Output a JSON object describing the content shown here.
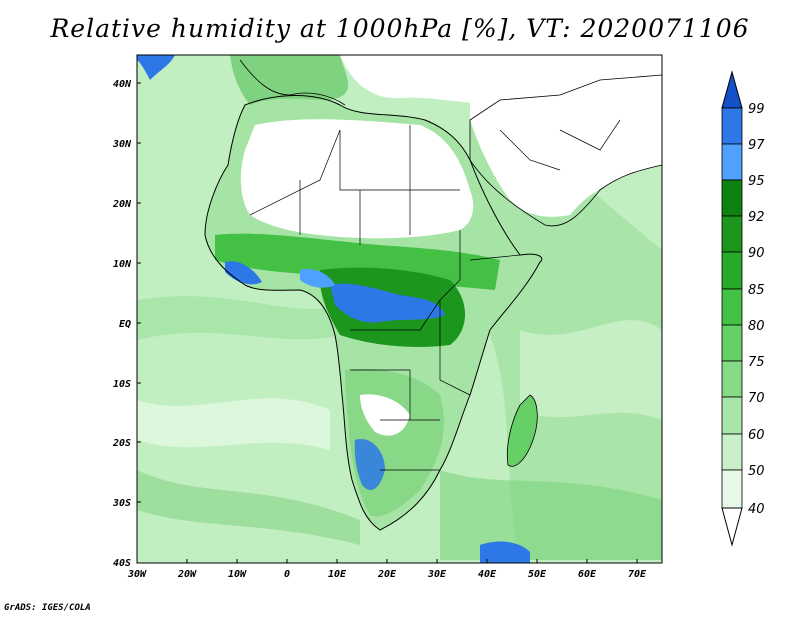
{
  "title": "Relative humidity at 1000hPa [%], VT: 2020071106",
  "credit": "GrADS: IGES/COLA",
  "map": {
    "lon_range": [
      -30,
      75
    ],
    "lat_range": [
      -40,
      45
    ],
    "lon_ticks": [
      "30W",
      "20W",
      "10W",
      "0",
      "10E",
      "20E",
      "30E",
      "40E",
      "50E",
      "60E",
      "70E"
    ],
    "lat_ticks": [
      "40N",
      "30N",
      "20N",
      "10N",
      "EQ",
      "10S",
      "20S",
      "30S",
      "40S"
    ]
  },
  "colorbar": {
    "levels": [
      "40",
      "50",
      "60",
      "70",
      "75",
      "80",
      "85",
      "90",
      "92",
      "95",
      "97",
      "99"
    ],
    "colors": {
      "lt40": "#ffffff",
      "40_50": "#e6f8e6",
      "50_60": "#c9f0c9",
      "60_70": "#a8e6a8",
      "70_75": "#86dc86",
      "75_80": "#66d066",
      "80_85": "#44c044",
      "85_90": "#2aaa2a",
      "90_92": "#1c961c",
      "92_95": "#0e820e",
      "95_97": "#50a0ff",
      "97_99": "#2d78e6",
      "gt99": "#1450c8"
    }
  }
}
